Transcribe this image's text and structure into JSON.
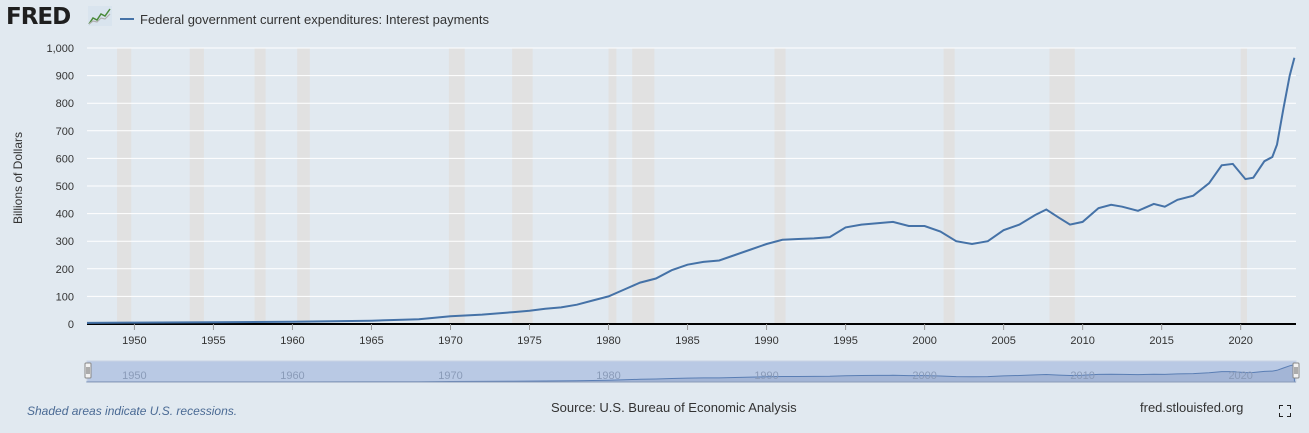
{
  "header": {
    "logo_text": "FRED",
    "logo_icon": "trend-graph-icon",
    "legend_label": "Federal government current expenditures: Interest payments",
    "series_color": "#4572a7"
  },
  "footer": {
    "note": "Shaded areas indicate U.S. recessions.",
    "source": "Source: U.S. Bureau of Economic Analysis",
    "site": "fred.stlouisfed.org",
    "fullscreen_icon": "fullscreen-icon"
  },
  "chart_data": {
    "type": "line",
    "title": "",
    "ylabel": "Billions of Dollars",
    "xlabel": "",
    "xlim": [
      1947,
      2023.5
    ],
    "ylim": [
      0,
      1000
    ],
    "y_ticks": [
      0,
      100,
      200,
      300,
      400,
      500,
      600,
      700,
      800,
      900,
      1000
    ],
    "y_tick_labels": [
      "0",
      "100",
      "200",
      "300",
      "400",
      "500",
      "600",
      "700",
      "800",
      "900",
      "1,000"
    ],
    "x_ticks": [
      1950,
      1955,
      1960,
      1965,
      1970,
      1975,
      1980,
      1985,
      1990,
      1995,
      2000,
      2005,
      2010,
      2015,
      2020
    ],
    "x_tick_labels": [
      "1950",
      "1955",
      "1960",
      "1965",
      "1970",
      "1975",
      "1980",
      "1985",
      "1990",
      "1995",
      "2000",
      "2005",
      "2010",
      "2015",
      "2020"
    ],
    "navigator_labels": [
      "1950",
      "1960",
      "1970",
      "1980",
      "1990",
      "2000",
      "2010",
      "2020"
    ],
    "grid": true,
    "recessions": [
      [
        1948.9,
        1949.8
      ],
      [
        1953.5,
        1954.4
      ],
      [
        1957.6,
        1958.3
      ],
      [
        1960.3,
        1961.1
      ],
      [
        1969.9,
        1970.9
      ],
      [
        1973.9,
        1975.2
      ],
      [
        1980.0,
        1980.5
      ],
      [
        1981.5,
        1982.9
      ],
      [
        1990.5,
        1991.2
      ],
      [
        2001.2,
        2001.9
      ],
      [
        2007.9,
        2009.5
      ],
      [
        2020.0,
        2020.4
      ]
    ],
    "series": [
      {
        "name": "Federal government current expenditures: Interest payments",
        "x": [
          1947,
          1950,
          1955,
          1960,
          1965,
          1968,
          1970,
          1972,
          1974,
          1975,
          1976,
          1977,
          1978,
          1979,
          1980,
          1981,
          1982,
          1983,
          1984,
          1985,
          1986,
          1987,
          1988,
          1989,
          1990,
          1991,
          1992,
          1993,
          1994,
          1995,
          1996,
          1997,
          1998,
          1999,
          2000,
          2001,
          2002,
          2003,
          2004,
          2005,
          2006,
          2007,
          2007.7,
          2008.5,
          2009.2,
          2010,
          2011,
          2011.8,
          2012.5,
          2013.5,
          2014.5,
          2015.2,
          2016,
          2017,
          2018,
          2018.8,
          2019.5,
          2020.3,
          2020.8,
          2021.5,
          2022.0,
          2022.3,
          2022.7,
          2023.1,
          2023.4
        ],
        "values": [
          4,
          5,
          6,
          8,
          12,
          17,
          28,
          34,
          43,
          48,
          55,
          60,
          70,
          85,
          100,
          125,
          150,
          165,
          195,
          215,
          225,
          230,
          250,
          270,
          290,
          305,
          308,
          310,
          315,
          350,
          360,
          365,
          370,
          355,
          355,
          335,
          300,
          290,
          300,
          340,
          360,
          395,
          415,
          385,
          360,
          370,
          420,
          432,
          425,
          410,
          435,
          425,
          450,
          465,
          510,
          575,
          580,
          525,
          530,
          590,
          605,
          650,
          780,
          900,
          965
        ]
      }
    ]
  }
}
